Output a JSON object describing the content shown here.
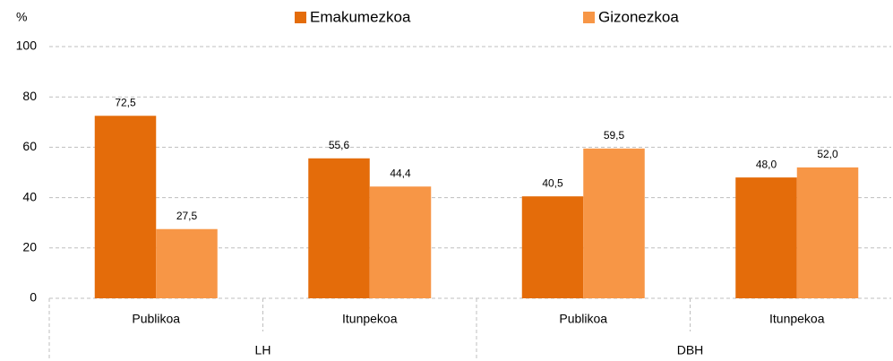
{
  "chart_data": {
    "type": "bar",
    "y_label": "%",
    "groups": [
      {
        "name": "LH",
        "categories": [
          "Publikoa",
          "Itunpekoa"
        ]
      },
      {
        "name": "DBH",
        "categories": [
          "Publikoa",
          "Itunpekoa"
        ]
      }
    ],
    "series": [
      {
        "name": "Emakumezkoa",
        "color": "#e46c0a",
        "values": [
          72.5,
          55.6,
          40.5,
          48.0
        ],
        "value_labels": [
          "72,5",
          "55,6",
          "40,5",
          "48,0"
        ]
      },
      {
        "name": "Gizonezkoa",
        "color": "#f79646",
        "values": [
          27.5,
          44.4,
          59.5,
          52.0
        ],
        "value_labels": [
          "27,5",
          "44,4",
          "59,5",
          "52,0"
        ]
      }
    ],
    "ylim": [
      0,
      100
    ],
    "yticks": [
      0,
      20,
      40,
      60,
      80,
      100
    ],
    "grid": true,
    "legend": "top"
  }
}
